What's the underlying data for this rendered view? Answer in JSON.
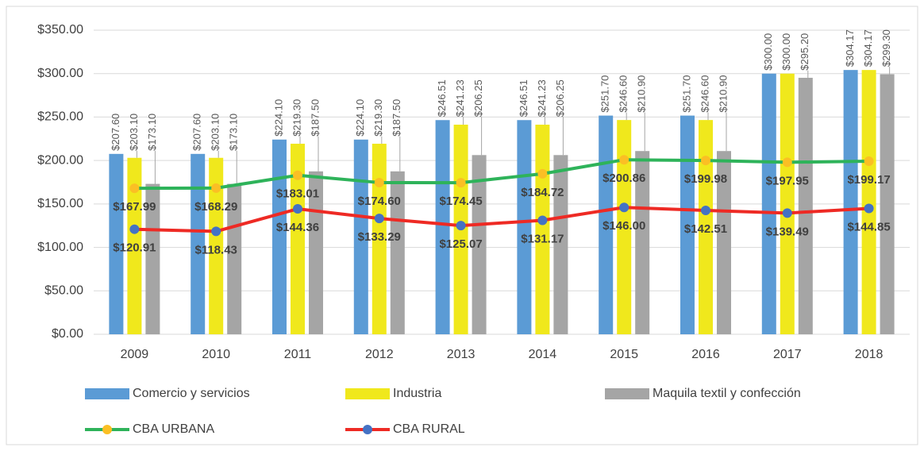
{
  "chart_data": {
    "type": "bar",
    "categories": [
      "2009",
      "2010",
      "2011",
      "2012",
      "2013",
      "2014",
      "2015",
      "2016",
      "2017",
      "2018"
    ],
    "series": [
      {
        "name": "Comercio y servicios",
        "color": "#5b9bd5",
        "values": [
          207.6,
          207.6,
          224.1,
          224.1,
          246.51,
          246.51,
          251.7,
          251.7,
          300,
          304.17
        ],
        "value_labels": [
          "$207.60",
          "$207.60",
          "$224.10",
          "$224.10",
          "$246.51",
          "$246.51",
          "$251.70",
          "$251.70",
          "$300.00",
          "$304.17"
        ]
      },
      {
        "name": "Industria",
        "color": "#f0e81c",
        "values": [
          203.1,
          203.1,
          219.3,
          219.3,
          241.23,
          241.23,
          246.6,
          246.6,
          300,
          304.17
        ],
        "value_labels": [
          "$203.10",
          "$203.10",
          "$219.30",
          "$219.30",
          "$241.23",
          "$241.23",
          "$246.60",
          "$246.60",
          "$300.00",
          "$304.17"
        ]
      },
      {
        "name": "Maquila textil y confección",
        "color": "#a5a5a5",
        "values": [
          173.1,
          173.1,
          187.5,
          187.5,
          206.25,
          206.25,
          210.9,
          210.9,
          295.2,
          299.3
        ],
        "value_labels": [
          "$173.10",
          "$173.10",
          "$187.50",
          "$187.50",
          "$206.25",
          "$206.25",
          "$210.90",
          "$210.90",
          "$295.20",
          "$299.30"
        ]
      },
      {
        "name": "CBA URBANA",
        "type": "line",
        "color": "#2eb35a",
        "marker_color": "#fbbf24",
        "values": [
          167.99,
          168.29,
          183.01,
          174.6,
          174.45,
          184.72,
          200.86,
          199.98,
          197.95,
          199.17
        ],
        "value_labels": [
          "$167.99",
          "$168.29",
          "$183.01",
          "$174.60",
          "$174.45",
          "$184.72",
          "$200.86",
          "$199.98",
          "$197.95",
          "$199.17"
        ]
      },
      {
        "name": "CBA RURAL",
        "type": "line",
        "color": "#ee2a24",
        "marker_color": "#4472c4",
        "values": [
          120.91,
          118.43,
          144.36,
          133.29,
          125.07,
          131.17,
          146,
          142.51,
          139.49,
          144.85
        ],
        "value_labels": [
          "$120.91",
          "$118.43",
          "$144.36",
          "$133.29",
          "$125.07",
          "$131.17",
          "$146.00",
          "$142.51",
          "$139.49",
          "$144.85"
        ]
      }
    ],
    "ylim": [
      0,
      350
    ],
    "yticks": [
      {
        "value": 0,
        "label": "$0.00"
      },
      {
        "value": 50,
        "label": "$50.00"
      },
      {
        "value": 100,
        "label": "$100.00"
      },
      {
        "value": 150,
        "label": "$150.00"
      },
      {
        "value": 200,
        "label": "$200.00"
      },
      {
        "value": 250,
        "label": "$250.00"
      },
      {
        "value": 300,
        "label": "$300.00"
      },
      {
        "value": 350,
        "label": "$350.00"
      }
    ],
    "grid": true
  }
}
